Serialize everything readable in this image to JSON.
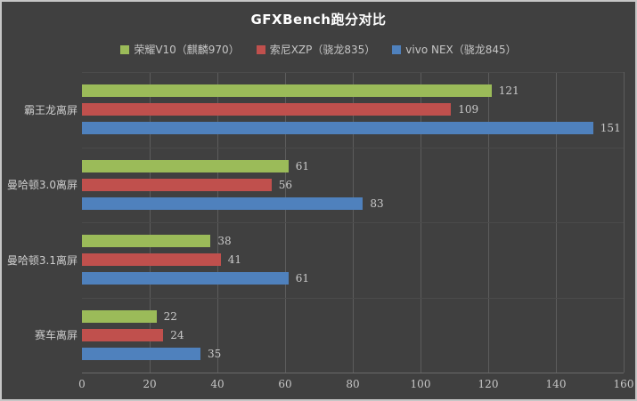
{
  "window": {
    "title": "GFXBench跑分对比"
  },
  "colors": {
    "background": "#404040",
    "frame_border": "#c6c6c6",
    "title_text": "#ffffff",
    "legend_text": "#c5c5c5",
    "category_text": "#cdcdcd",
    "value_text": "#c9c9c9",
    "tick_text": "#c6c6c6",
    "grid_vertical": "#5c5c5c",
    "grid_horizontal": "#4b4b4b",
    "axis_line": "#6a6a6a"
  },
  "chart_data": {
    "type": "bar",
    "orientation": "horizontal",
    "title": "GFXBench跑分对比",
    "categories": [
      "霸王龙离屏",
      "曼哈顿3.0离屏",
      "曼哈顿3.1离屏",
      "赛车离屏"
    ],
    "series": [
      {
        "name": "荣耀V10（麒麟970）",
        "color": "#9bbb59",
        "values": [
          121,
          61,
          38,
          22
        ]
      },
      {
        "name": "索尼XZP（骁龙835）",
        "color": "#c0504d",
        "values": [
          109,
          56,
          41,
          24
        ]
      },
      {
        "name": "vivo NEX（骁龙845）",
        "color": "#4f81bd",
        "values": [
          151,
          83,
          61,
          35
        ]
      }
    ],
    "xlabel": "",
    "ylabel": "",
    "xlim": [
      0,
      160
    ],
    "x_ticks": [
      0,
      20,
      40,
      60,
      80,
      100,
      120,
      140,
      160
    ],
    "legend_position": "top",
    "grid": true,
    "value_labels": true
  }
}
